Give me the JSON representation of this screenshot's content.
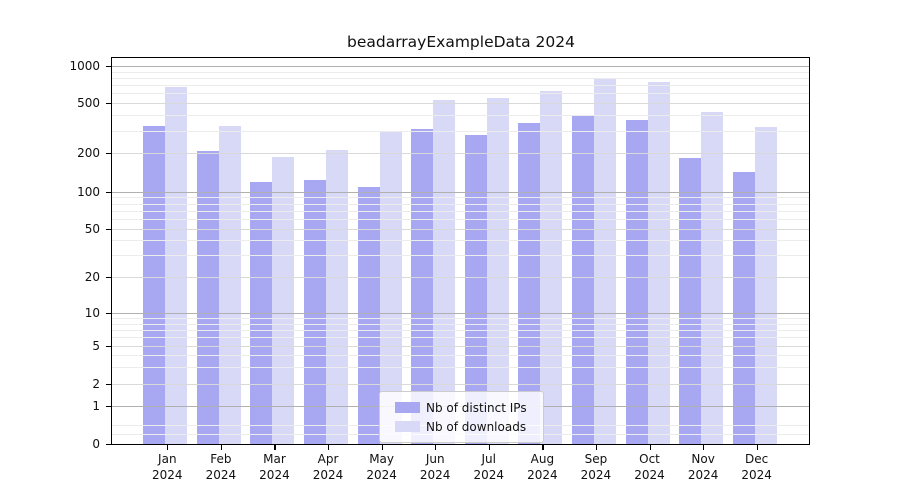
{
  "title": "beadarrayExampleData 2024",
  "chart_data": {
    "type": "bar",
    "title": "beadarrayExampleData 2024",
    "categories": [
      "Jan 2024",
      "Feb 2024",
      "Mar 2024",
      "Apr 2024",
      "May 2024",
      "Jun 2024",
      "Jul 2024",
      "Aug 2024",
      "Sep 2024",
      "Oct 2024",
      "Nov 2024",
      "Dec 2024"
    ],
    "series": [
      {
        "name": "Nb of distinct IPs",
        "color": "#a7a7f2",
        "values": [
          330,
          210,
          120,
          125,
          110,
          315,
          280,
          350,
          400,
          370,
          185,
          145
        ]
      },
      {
        "name": "Nb of downloads",
        "color": "#d8d8f7",
        "values": [
          680,
          330,
          190,
          215,
          300,
          535,
          550,
          630,
          800,
          750,
          430,
          325
        ]
      }
    ],
    "xlabel": "",
    "ylabel": "",
    "yscale": "log-like (0,1,2,5 ... 1000 ticks, zero baseline)",
    "yticks": [
      0,
      1,
      2,
      5,
      10,
      20,
      50,
      100,
      200,
      500,
      1000
    ],
    "ytick_labels": [
      "0",
      "1",
      "2",
      "5",
      "10",
      "20",
      "50",
      "100",
      "200",
      "500",
      "1000"
    ],
    "ylim": [
      0,
      1150
    ],
    "grid": "horizontal major + minor gridlines drawn over bars",
    "legend_position": "lower center"
  },
  "colors": {
    "background": "#ffffff",
    "ips_bar": "#a7a7f2",
    "downloads_bar": "#d8d8f7",
    "grid_major": "#b0b0b0",
    "grid_mid": "#d9d9d9",
    "grid_minor": "#ececec",
    "axis": "#000000",
    "text": "#111111"
  }
}
